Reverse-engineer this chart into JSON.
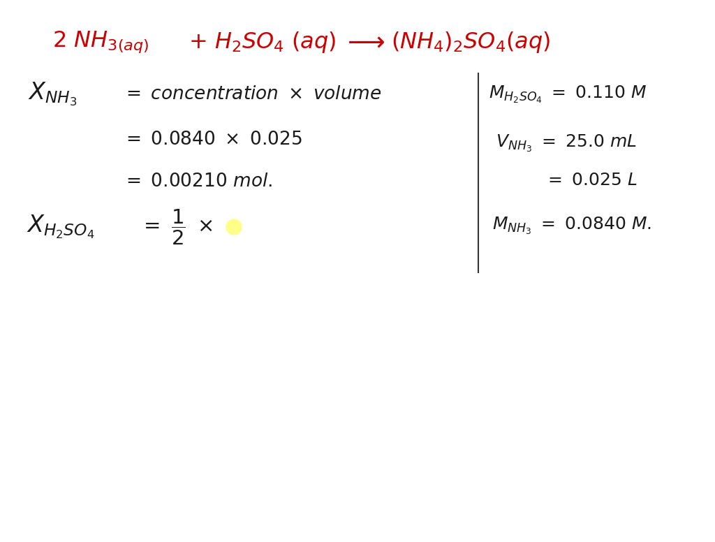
{
  "background_color": "#ffffff",
  "equation_color": "#cc0000",
  "text_color": "#1a1a1a",
  "figsize": [
    10.24,
    7.76
  ],
  "dpi": 100,
  "highlight_color": "#ffff88"
}
